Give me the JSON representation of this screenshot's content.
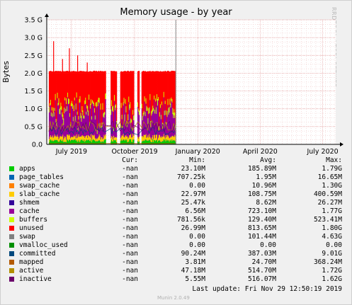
{
  "window": {
    "title": "Memory usage - by year",
    "watermark": "RRDTOOL / TOBI OETIKER",
    "last_update": "Last update: Fri Nov 29 12:50:19 2019",
    "footer": "Munin 2.0.49"
  },
  "colors": {
    "background": "#f0f0f0",
    "plot_background": "#ffffff",
    "grid": "#e4a0a0",
    "axis": "#000000"
  },
  "legend": {
    "headers": {
      "cur": "Cur:",
      "min": "Min:",
      "avg": "Avg:",
      "max": "Max:"
    },
    "rows": [
      {
        "name": "apps",
        "color": "#00cc00",
        "cur": "-nan",
        "min": "23.10M",
        "avg": "185.89M",
        "max": "1.79G"
      },
      {
        "name": "page_tables",
        "color": "#0066b3",
        "cur": "-nan",
        "min": "707.25k",
        "avg": "1.95M",
        "max": "16.65M"
      },
      {
        "name": "swap_cache",
        "color": "#ff8000",
        "cur": "-nan",
        "min": "0.00",
        "avg": "10.96M",
        "max": "1.30G"
      },
      {
        "name": "slab_cache",
        "color": "#ffcc00",
        "cur": "-nan",
        "min": "22.97M",
        "avg": "108.75M",
        "max": "400.59M"
      },
      {
        "name": "shmem",
        "color": "#330099",
        "cur": "-nan",
        "min": "25.47k",
        "avg": "8.62M",
        "max": "26.27M"
      },
      {
        "name": "cache",
        "color": "#990099",
        "cur": "-nan",
        "min": "6.56M",
        "avg": "723.10M",
        "max": "1.77G"
      },
      {
        "name": "buffers",
        "color": "#ccff00",
        "cur": "-nan",
        "min": "781.56k",
        "avg": "129.40M",
        "max": "523.41M"
      },
      {
        "name": "unused",
        "color": "#ff0000",
        "cur": "-nan",
        "min": "26.99M",
        "avg": "813.65M",
        "max": "1.80G"
      },
      {
        "name": "swap",
        "color": "#808080",
        "cur": "-nan",
        "min": "0.00",
        "avg": "101.44M",
        "max": "4.63G"
      },
      {
        "name": "vmalloc_used",
        "color": "#008f00",
        "cur": "-nan",
        "min": "0.00",
        "avg": "0.00",
        "max": "0.00"
      },
      {
        "name": "committed",
        "color": "#00487d",
        "cur": "-nan",
        "min": "90.24M",
        "avg": "387.03M",
        "max": "9.01G"
      },
      {
        "name": "mapped",
        "color": "#b35a00",
        "cur": "-nan",
        "min": "3.81M",
        "avg": "24.70M",
        "max": "368.24M"
      },
      {
        "name": "active",
        "color": "#b38f00",
        "cur": "-nan",
        "min": "47.18M",
        "avg": "514.70M",
        "max": "1.72G"
      },
      {
        "name": "inactive",
        "color": "#6b006b",
        "cur": "-nan",
        "min": "5.55M",
        "avg": "516.07M",
        "max": "1.62G"
      }
    ]
  },
  "chart_data": {
    "type": "area",
    "title": "Memory usage - by year",
    "ylabel": "Bytes",
    "xlabel": "",
    "y_unit": "bytes",
    "ylim": [
      0,
      3500000000
    ],
    "yticks": [
      "0.0",
      "0.5 G",
      "1.0 G",
      "1.5 G",
      "2.0 G",
      "2.5 G",
      "3.0 G",
      "3.5 G"
    ],
    "yticks_values": [
      0,
      500000000,
      1000000000,
      1500000000,
      2000000000,
      2500000000,
      3000000000,
      3500000000
    ],
    "xlim": [
      "2019-05-26",
      "2020-07-20"
    ],
    "xticks": [
      {
        "label": "July 2019",
        "date": "2019-07-01"
      },
      {
        "label": "October 2019",
        "date": "2019-10-01"
      },
      {
        "label": "January 2020",
        "date": "2020-01-01"
      },
      {
        "label": "April 2020",
        "date": "2020-04-01"
      },
      {
        "label": "July 2020",
        "date": "2020-07-01"
      }
    ],
    "grid": true,
    "data_range": [
      "2019-05-29",
      "2019-11-29"
    ],
    "gaps": [
      [
        "2019-08-20",
        "2019-08-26"
      ],
      [
        "2019-09-05",
        "2019-09-09"
      ],
      [
        "2019-09-30",
        "2019-10-04"
      ],
      [
        "2019-10-08",
        "2019-10-10"
      ]
    ],
    "stacked_series": [
      {
        "name": "apps",
        "approx_level": 100000000
      },
      {
        "name": "page_tables",
        "approx_level": 2000000
      },
      {
        "name": "swap_cache",
        "approx_level": 10000000
      },
      {
        "name": "slab_cache",
        "approx_level": 110000000
      },
      {
        "name": "shmem",
        "approx_level": 9000000
      },
      {
        "name": "cache",
        "approx_level": 720000000
      },
      {
        "name": "buffers",
        "approx_level": 130000000
      },
      {
        "name": "unused",
        "approx_level": 810000000
      },
      {
        "name": "swap",
        "approx_level": 100000000
      }
    ],
    "line_series": [
      "vmalloc_used",
      "committed",
      "mapped",
      "active",
      "inactive"
    ],
    "total_level": 2000000000,
    "spikes": [
      2900000000,
      2400000000,
      2700000000,
      2500000000,
      2300000000
    ]
  }
}
